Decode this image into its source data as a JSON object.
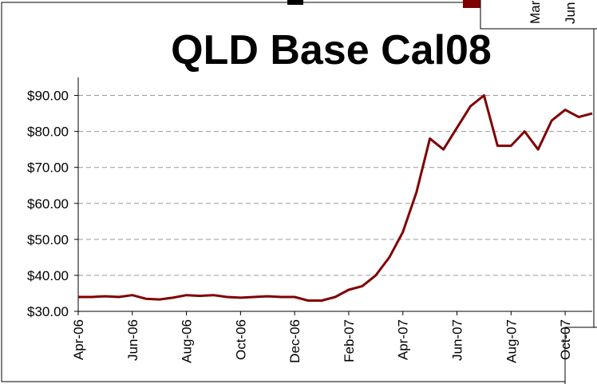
{
  "chart_data": {
    "type": "line",
    "title": "QLD Base Cal08",
    "categories": [
      "Apr-06",
      null,
      null,
      null,
      "Jun-06",
      null,
      null,
      null,
      "Aug-06",
      null,
      null,
      null,
      "Oct-06",
      null,
      null,
      null,
      "Dec-06",
      null,
      null,
      null,
      "Feb-07",
      null,
      null,
      null,
      "Apr-07",
      null,
      null,
      null,
      "Jun-07",
      null,
      null,
      null,
      "Aug-07",
      null,
      null,
      null,
      "Oct-07",
      null,
      null
    ],
    "series": [
      {
        "name": "QLD Base Cal08",
        "color": "#800000",
        "values": [
          34,
          34,
          34.2,
          34,
          34.5,
          33.5,
          33.3,
          33.8,
          34.5,
          34.3,
          34.5,
          34,
          33.8,
          34,
          34.2,
          34,
          34,
          33,
          33,
          34,
          36,
          37,
          40,
          45,
          52,
          63,
          78,
          75,
          81,
          87,
          90,
          76,
          76,
          80,
          75,
          83,
          86,
          84,
          85
        ]
      }
    ],
    "ylim": [
      30,
      95
    ],
    "yticks": [
      {
        "value": 30,
        "label": "$30.00"
      },
      {
        "value": 40,
        "label": "$40.00"
      },
      {
        "value": 50,
        "label": "$50.00"
      },
      {
        "value": 60,
        "label": "$60.00"
      },
      {
        "value": 70,
        "label": "$70.00"
      },
      {
        "value": 80,
        "label": "$80.00"
      },
      {
        "value": 90,
        "label": "$90.00"
      }
    ],
    "grid": true
  },
  "overlay": {
    "labels": [
      "Mar",
      "Jun"
    ]
  }
}
